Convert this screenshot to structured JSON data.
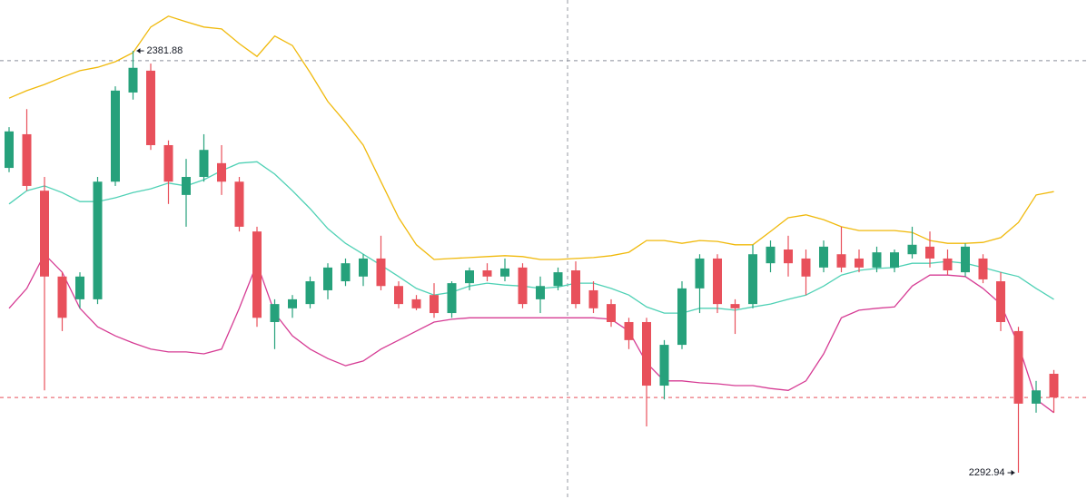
{
  "chart_data": {
    "type": "candlestick",
    "ylim": [
      2287.4,
      2392.6
    ],
    "up_color": "#26a17b",
    "down_color": "#e8505b",
    "open": [
      2357.2,
      2364.3,
      2352.4,
      2334.3,
      2329.5,
      2329.5,
      2354.3,
      2373.1,
      2377.7,
      2362.0,
      2351.5,
      2355.3,
      2358.2,
      2354.3,
      2343.8,
      2324.7,
      2327.6,
      2328.5,
      2331.4,
      2333.3,
      2334.3,
      2338.1,
      2332.3,
      2329.5,
      2330.4,
      2326.6,
      2332.9,
      2335.6,
      2334.3,
      2336.2,
      2329.5,
      2332.3,
      2335.6,
      2331.4,
      2328.5,
      2324.7,
      2324.7,
      2311.3,
      2319.9,
      2331.8,
      2338.1,
      2328.5,
      2328.5,
      2337.1,
      2340.0,
      2338.1,
      2336.2,
      2339.0,
      2338.1,
      2336.2,
      2336.2,
      2339.0,
      2340.6,
      2338.1,
      2335.2,
      2338.1,
      2333.3,
      2322.8,
      2307.5,
      2313.8
    ],
    "high": [
      2365.8,
      2369.6,
      2355.3,
      2335.2,
      2335.2,
      2355.3,
      2374.4,
      2381.88,
      2379.2,
      2363.0,
      2359.1,
      2364.3,
      2362.0,
      2355.3,
      2344.8,
      2329.5,
      2330.4,
      2334.3,
      2337.1,
      2338.1,
      2339.0,
      2342.9,
      2333.3,
      2330.4,
      2332.9,
      2333.3,
      2336.2,
      2337.1,
      2338.1,
      2337.1,
      2334.3,
      2336.2,
      2337.5,
      2333.3,
      2329.5,
      2325.6,
      2325.6,
      2320.9,
      2333.3,
      2339.0,
      2339.0,
      2329.5,
      2341.0,
      2341.9,
      2342.9,
      2340.0,
      2341.9,
      2344.8,
      2340.0,
      2340.6,
      2340.0,
      2344.8,
      2343.8,
      2340.0,
      2341.3,
      2339.0,
      2335.2,
      2323.7,
      2312.3,
      2314.6
    ],
    "low": [
      2356.3,
      2352.4,
      2310.3,
      2322.8,
      2327.6,
      2328.5,
      2353.4,
      2371.6,
      2361.0,
      2349.6,
      2344.8,
      2354.3,
      2351.5,
      2343.8,
      2323.7,
      2319.0,
      2325.6,
      2327.6,
      2329.5,
      2332.3,
      2332.3,
      2331.4,
      2327.6,
      2327.2,
      2325.6,
      2325.6,
      2331.4,
      2333.3,
      2333.3,
      2327.6,
      2326.6,
      2331.4,
      2327.6,
      2326.6,
      2323.7,
      2319.0,
      2302.7,
      2308.4,
      2319.0,
      2326.6,
      2326.6,
      2322.2,
      2327.6,
      2335.2,
      2334.3,
      2330.4,
      2335.2,
      2335.2,
      2335.2,
      2335.2,
      2335.2,
      2338.1,
      2336.2,
      2334.6,
      2334.3,
      2332.9,
      2322.8,
      2292.94,
      2305.6,
      2305.6
    ],
    "close": [
      2364.9,
      2353.4,
      2334.3,
      2325.6,
      2334.3,
      2354.3,
      2373.5,
      2378.3,
      2362.0,
      2354.3,
      2355.3,
      2361.0,
      2354.3,
      2344.8,
      2325.6,
      2328.5,
      2329.5,
      2333.3,
      2336.2,
      2337.1,
      2338.1,
      2332.3,
      2328.5,
      2327.6,
      2326.6,
      2332.9,
      2335.6,
      2334.3,
      2336.0,
      2328.5,
      2332.3,
      2335.2,
      2328.5,
      2327.6,
      2324.7,
      2320.9,
      2311.3,
      2319.9,
      2331.8,
      2338.1,
      2328.5,
      2327.6,
      2339.0,
      2340.6,
      2337.1,
      2334.3,
      2340.6,
      2336.2,
      2336.2,
      2339.4,
      2339.4,
      2341.0,
      2338.1,
      2335.6,
      2340.6,
      2333.7,
      2324.7,
      2307.5,
      2310.3,
      2308.8
    ],
    "bands": [
      {
        "color": "#f0b90b",
        "values": [
          2371.9,
          2373.5,
          2374.8,
          2376.3,
          2377.7,
          2378.4,
          2379.6,
          2381.5,
          2386.9,
          2389.2,
          2388.0,
          2386.9,
          2386.5,
          2383.4,
          2380.7,
          2385.0,
          2383.0,
          2377.3,
          2371.2,
          2366.8,
          2362.0,
          2354.3,
          2346.7,
          2341.0,
          2337.9,
          2338.1,
          2338.3,
          2338.5,
          2338.7,
          2338.5,
          2337.9,
          2337.9,
          2338.1,
          2338.3,
          2338.7,
          2339.4,
          2341.9,
          2341.9,
          2341.3,
          2341.9,
          2341.7,
          2341.0,
          2341.0,
          2343.8,
          2346.7,
          2347.3,
          2346.3,
          2344.8,
          2344.0,
          2344.0,
          2344.0,
          2343.6,
          2341.9,
          2341.3,
          2341.3,
          2341.5,
          2342.5,
          2345.7,
          2351.5,
          2352.2
        ]
      },
      {
        "color": "#4fd1b5",
        "values": [
          2349.6,
          2352.4,
          2353.4,
          2352.0,
          2350.1,
          2350.1,
          2350.9,
          2352.0,
          2352.8,
          2354.0,
          2353.4,
          2354.7,
          2356.6,
          2358.2,
          2358.5,
          2355.9,
          2352.4,
          2348.6,
          2344.4,
          2341.3,
          2339.0,
          2336.7,
          2334.3,
          2331.8,
          2330.4,
          2331.0,
          2332.3,
          2332.9,
          2332.5,
          2332.3,
          2331.8,
          2332.1,
          2332.9,
          2332.9,
          2331.8,
          2330.4,
          2327.9,
          2326.6,
          2326.6,
          2327.6,
          2327.6,
          2327.2,
          2327.9,
          2328.5,
          2329.5,
          2330.4,
          2332.3,
          2334.6,
          2335.6,
          2336.0,
          2336.2,
          2337.1,
          2337.1,
          2337.5,
          2337.1,
          2336.2,
          2335.2,
          2334.3,
          2331.8,
          2329.5
        ]
      },
      {
        "color": "#d63c94",
        "values": [
          2327.6,
          2331.8,
          2339.0,
          2335.2,
          2327.6,
          2323.7,
          2321.8,
          2320.3,
          2319.0,
          2318.4,
          2318.4,
          2318.0,
          2319.0,
          2327.6,
          2337.1,
          2326.6,
          2321.8,
          2319.0,
          2317.0,
          2315.5,
          2316.5,
          2319.0,
          2320.9,
          2322.8,
          2324.7,
          2325.3,
          2325.6,
          2325.6,
          2325.6,
          2325.6,
          2325.6,
          2325.6,
          2325.6,
          2325.6,
          2325.3,
          2322.8,
          2316.1,
          2312.3,
          2312.3,
          2311.9,
          2311.7,
          2311.3,
          2311.3,
          2310.7,
          2310.3,
          2312.3,
          2318.0,
          2325.6,
          2327.2,
          2327.6,
          2327.9,
          2332.3,
          2334.6,
          2334.6,
          2334.3,
          2331.8,
          2328.5,
          2319.9,
          2308.4,
          2305.6
        ]
      }
    ],
    "price_lines": [
      {
        "value": 2379.8,
        "color": "#8a8f9a"
      },
      {
        "value": 2308.8,
        "color": "#e8505b"
      }
    ]
  }
}
